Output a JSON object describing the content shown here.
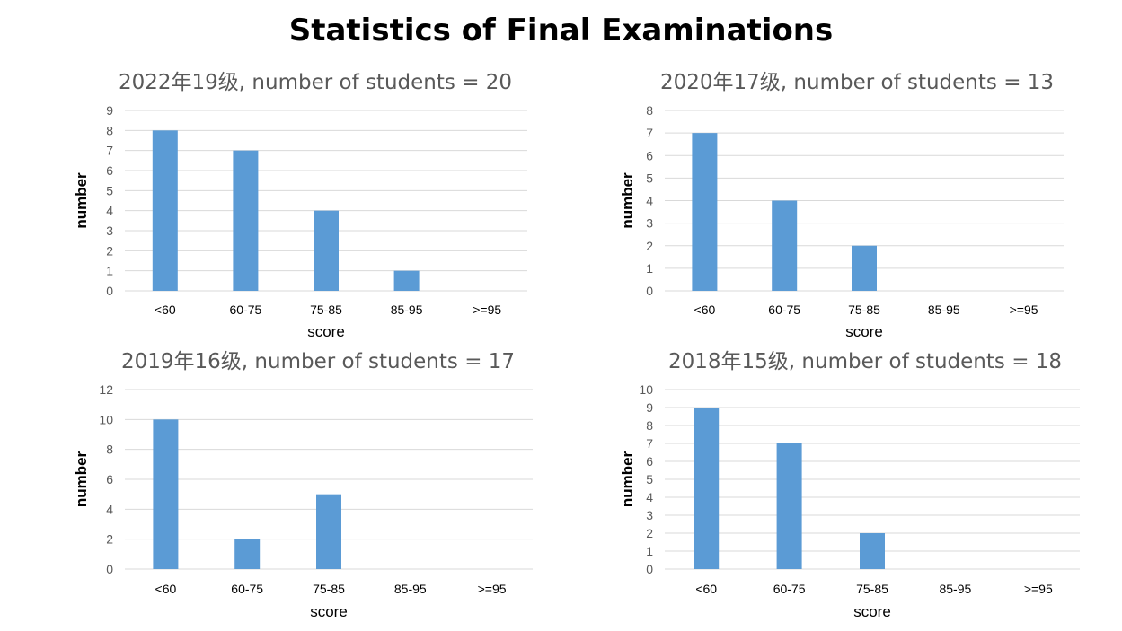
{
  "page_title": "Statistics of Final Examinations",
  "colors": {
    "bar": "#5b9bd5",
    "grid": "#d9d9d9",
    "title": "#595959"
  },
  "chart_data": [
    {
      "type": "bar",
      "title": "2022年19级, number of students = 20",
      "categories": [
        "<60",
        "60-75",
        "75-85",
        "85-95",
        ">=95"
      ],
      "values": [
        8,
        7,
        4,
        1,
        0
      ],
      "xlabel": "score",
      "ylabel": "number",
      "ylim": [
        0,
        9
      ],
      "yticks": [
        0,
        1,
        2,
        3,
        4,
        5,
        6,
        7,
        8,
        9
      ],
      "grid": true
    },
    {
      "type": "bar",
      "title": "2020年17级, number of students = 13",
      "categories": [
        "<60",
        "60-75",
        "75-85",
        "85-95",
        ">=95"
      ],
      "values": [
        7,
        4,
        2,
        0,
        0
      ],
      "xlabel": "score",
      "ylabel": "number",
      "ylim": [
        0,
        8
      ],
      "yticks": [
        0,
        1,
        2,
        3,
        4,
        5,
        6,
        7,
        8
      ],
      "grid": true
    },
    {
      "type": "bar",
      "title": "2019年16级, number of students = 17",
      "categories": [
        "<60",
        "60-75",
        "75-85",
        "85-95",
        ">=95"
      ],
      "values": [
        10,
        2,
        5,
        0,
        0
      ],
      "xlabel": "score",
      "ylabel": "number",
      "ylim": [
        0,
        12
      ],
      "yticks": [
        0,
        2,
        4,
        6,
        8,
        10,
        12
      ],
      "grid": true
    },
    {
      "type": "bar",
      "title": "2018年15级, number of students = 18",
      "categories": [
        "<60",
        "60-75",
        "75-85",
        "85-95",
        ">=95"
      ],
      "values": [
        9,
        7,
        2,
        0,
        0
      ],
      "xlabel": "score",
      "ylabel": "number",
      "ylim": [
        0,
        10
      ],
      "yticks": [
        0,
        1,
        2,
        3,
        4,
        5,
        6,
        7,
        8,
        9,
        10
      ],
      "grid": true
    }
  ]
}
